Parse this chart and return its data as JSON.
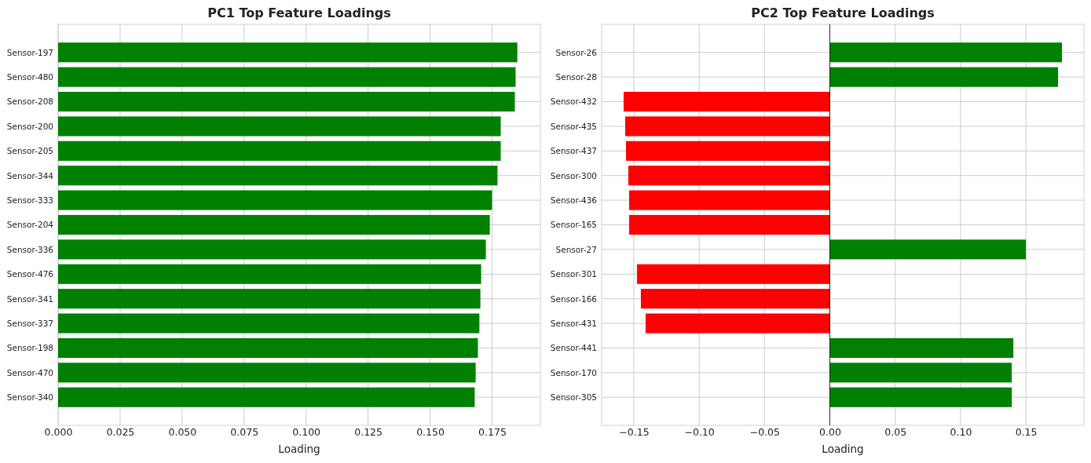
{
  "chart_data": [
    {
      "type": "bar",
      "orientation": "horizontal",
      "title": "PC1 Top Feature Loadings",
      "xlabel": "Loading",
      "grid": true,
      "categories": [
        "Sensor-197",
        "Sensor-480",
        "Sensor-208",
        "Sensor-200",
        "Sensor-205",
        "Sensor-344",
        "Sensor-333",
        "Sensor-204",
        "Sensor-336",
        "Sensor-476",
        "Sensor-341",
        "Sensor-337",
        "Sensor-198",
        "Sensor-470",
        "Sensor-340"
      ],
      "values": [
        0.1852,
        0.1845,
        0.1842,
        0.1785,
        0.1785,
        0.1772,
        0.175,
        0.1741,
        0.1725,
        0.1706,
        0.1703,
        0.1699,
        0.1693,
        0.1684,
        0.168
      ],
      "colors": [
        "#008000",
        "#008000",
        "#008000",
        "#008000",
        "#008000",
        "#008000",
        "#008000",
        "#008000",
        "#008000",
        "#008000",
        "#008000",
        "#008000",
        "#008000",
        "#008000",
        "#008000"
      ],
      "xlim": [
        0,
        0.1945
      ],
      "xticks": [
        {
          "value": 0,
          "label": "0.000"
        },
        {
          "value": 0.025,
          "label": "0.025"
        },
        {
          "value": 0.05,
          "label": "0.050"
        },
        {
          "value": 0.075,
          "label": "0.075"
        },
        {
          "value": 0.1,
          "label": "0.100"
        },
        {
          "value": 0.125,
          "label": "0.125"
        },
        {
          "value": 0.15,
          "label": "0.150"
        },
        {
          "value": 0.175,
          "label": "0.175"
        }
      ]
    },
    {
      "type": "bar",
      "orientation": "horizontal",
      "title": "PC2 Top Feature Loadings",
      "xlabel": "Loading",
      "grid": true,
      "categories": [
        "Sensor-26",
        "Sensor-28",
        "Sensor-432",
        "Sensor-435",
        "Sensor-437",
        "Sensor-300",
        "Sensor-436",
        "Sensor-165",
        "Sensor-27",
        "Sensor-301",
        "Sensor-166",
        "Sensor-431",
        "Sensor-441",
        "Sensor-170",
        "Sensor-305"
      ],
      "values": [
        0.1776,
        0.1746,
        -0.1578,
        -0.1566,
        -0.156,
        -0.1542,
        -0.1536,
        -0.1536,
        0.15,
        -0.1476,
        -0.1446,
        -0.141,
        0.1404,
        0.1392,
        0.1392
      ],
      "colors": [
        "#008000",
        "#008000",
        "#ff0000",
        "#ff0000",
        "#ff0000",
        "#ff0000",
        "#ff0000",
        "#ff0000",
        "#008000",
        "#ff0000",
        "#ff0000",
        "#ff0000",
        "#008000",
        "#008000",
        "#008000"
      ],
      "xlim": [
        -0.1746,
        0.1944
      ],
      "xticks": [
        {
          "value": -0.15,
          "label": "−0.15"
        },
        {
          "value": -0.1,
          "label": "−0.10"
        },
        {
          "value": -0.05,
          "label": "−0.05"
        },
        {
          "value": 0,
          "label": "0.00"
        },
        {
          "value": 0.05,
          "label": "0.05"
        },
        {
          "value": 0.1,
          "label": "0.10"
        },
        {
          "value": 0.15,
          "label": "0.15"
        }
      ],
      "ref_lines": [
        {
          "axis": "x",
          "value": 0,
          "color": "#000000"
        }
      ]
    }
  ]
}
